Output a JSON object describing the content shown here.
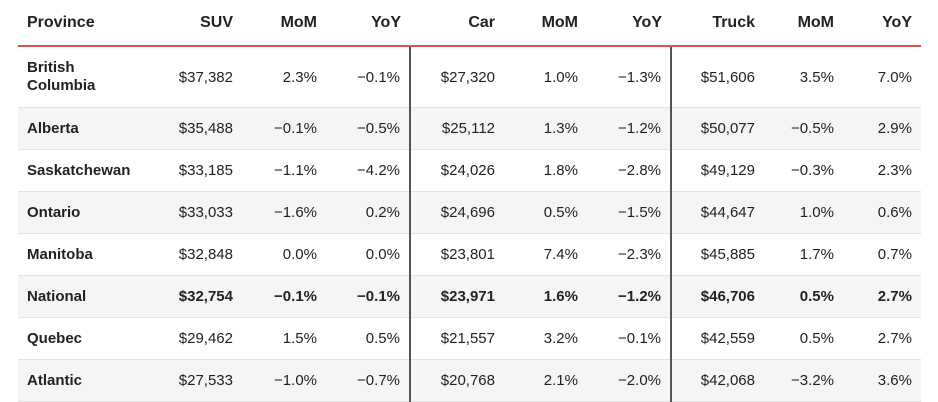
{
  "table": {
    "headers": [
      "Province",
      "SUV",
      "MoM",
      "YoY",
      "Car",
      "MoM",
      "YoY",
      "Truck",
      "MoM",
      "YoY"
    ],
    "rows": [
      {
        "province": "British Columbia",
        "suv": "$37,382",
        "suv_mom": "2.3%",
        "suv_yoy": "−0.1%",
        "car": "$27,320",
        "car_mom": "1.0%",
        "car_yoy": "−1.3%",
        "truck": "$51,606",
        "truck_mom": "3.5%",
        "truck_yoy": "7.0%"
      },
      {
        "province": "Alberta",
        "suv": "$35,488",
        "suv_mom": "−0.1%",
        "suv_yoy": "−0.5%",
        "car": "$25,112",
        "car_mom": "1.3%",
        "car_yoy": "−1.2%",
        "truck": "$50,077",
        "truck_mom": "−0.5%",
        "truck_yoy": "2.9%"
      },
      {
        "province": "Saskatchewan",
        "suv": "$33,185",
        "suv_mom": "−1.1%",
        "suv_yoy": "−4.2%",
        "car": "$24,026",
        "car_mom": "1.8%",
        "car_yoy": "−2.8%",
        "truck": "$49,129",
        "truck_mom": "−0.3%",
        "truck_yoy": "2.3%"
      },
      {
        "province": "Ontario",
        "suv": "$33,033",
        "suv_mom": "−1.6%",
        "suv_yoy": "0.2%",
        "car": "$24,696",
        "car_mom": "0.5%",
        "car_yoy": "−1.5%",
        "truck": "$44,647",
        "truck_mom": "1.0%",
        "truck_yoy": "0.6%"
      },
      {
        "province": "Manitoba",
        "suv": "$32,848",
        "suv_mom": "0.0%",
        "suv_yoy": "0.0%",
        "car": "$23,801",
        "car_mom": "7.4%",
        "car_yoy": "−2.3%",
        "truck": "$45,885",
        "truck_mom": "1.7%",
        "truck_yoy": "0.7%"
      },
      {
        "province": "National",
        "suv": "$32,754",
        "suv_mom": "−0.1%",
        "suv_yoy": "−0.1%",
        "car": "$23,971",
        "car_mom": "1.6%",
        "car_yoy": "−1.2%",
        "truck": "$46,706",
        "truck_mom": "0.5%",
        "truck_yoy": "2.7%"
      },
      {
        "province": "Quebec",
        "suv": "$29,462",
        "suv_mom": "1.5%",
        "suv_yoy": "0.5%",
        "car": "$21,557",
        "car_mom": "3.2%",
        "car_yoy": "−0.1%",
        "truck": "$42,559",
        "truck_mom": "0.5%",
        "truck_yoy": "2.7%"
      },
      {
        "province": "Atlantic",
        "suv": "$27,533",
        "suv_mom": "−1.0%",
        "suv_yoy": "−0.7%",
        "car": "$20,768",
        "car_mom": "2.1%",
        "car_yoy": "−2.0%",
        "truck": "$42,068",
        "truck_mom": "−3.2%",
        "truck_yoy": "3.6%"
      }
    ]
  },
  "colors": {
    "header_rule": "#d9534f",
    "row_shade": "#f5f5f5",
    "group_divider": "#555555",
    "text": "#222222"
  }
}
